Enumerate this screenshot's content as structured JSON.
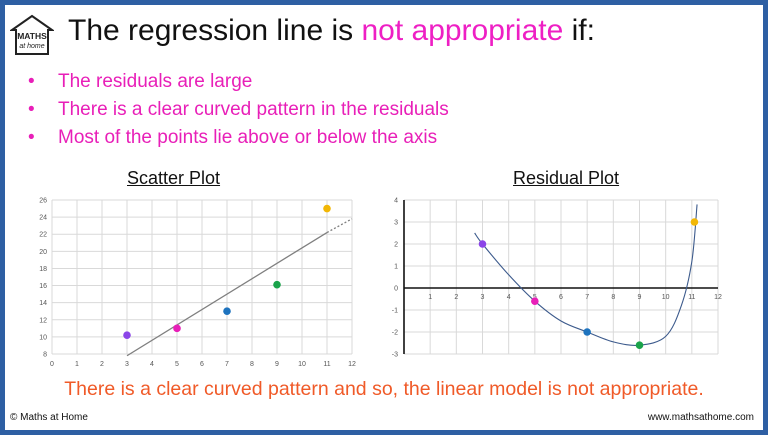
{
  "header": {
    "logo_text": "MATHS at home",
    "title_before": "The regression line is ",
    "title_highlight": "not appropriate",
    "title_after": " if:"
  },
  "bullets": [
    "The residuals are large",
    "There is a clear curved pattern in the residuals",
    "Most of the points lie above or below the axis"
  ],
  "conclusion": "There is a clear curved pattern and so, the linear model is not appropriate.",
  "footer": {
    "left": "© Maths at Home",
    "right": "www.mathsathome.com"
  },
  "chart_data": [
    {
      "type": "scatter",
      "title": "Scatter Plot",
      "xlim": [
        0,
        12
      ],
      "ylim": [
        8,
        26
      ],
      "xticks": [
        0,
        1,
        2,
        3,
        4,
        5,
        6,
        7,
        8,
        9,
        10,
        11,
        12
      ],
      "yticks": [
        8,
        10,
        12,
        14,
        16,
        18,
        20,
        22,
        24,
        26
      ],
      "grid": true,
      "points": [
        {
          "x": 3,
          "y": 10.2,
          "color": "#8b45e8"
        },
        {
          "x": 5,
          "y": 11,
          "color": "#e81fb8"
        },
        {
          "x": 7,
          "y": 13,
          "color": "#1e73be"
        },
        {
          "x": 9,
          "y": 16.1,
          "color": "#1aa34a"
        },
        {
          "x": 11,
          "y": 25,
          "color": "#f2b705"
        }
      ],
      "regression_line": {
        "x_start": 3,
        "y_start": 7.8,
        "x_end": 11,
        "y_end": 22.2,
        "dotted_to_x": 12,
        "dotted_to_y": 23.8
      }
    },
    {
      "type": "scatter",
      "title": "Residual Plot",
      "xlim": [
        0,
        12
      ],
      "ylim": [
        -3,
        4
      ],
      "xticks": [
        1,
        2,
        3,
        4,
        5,
        6,
        7,
        8,
        9,
        10,
        11,
        12
      ],
      "yticks": [
        -3,
        -2,
        -1,
        0,
        1,
        2,
        3,
        4
      ],
      "grid": true,
      "points": [
        {
          "x": 3,
          "y": 2,
          "color": "#8b45e8"
        },
        {
          "x": 5,
          "y": -0.6,
          "color": "#e81fb8"
        },
        {
          "x": 7,
          "y": -2,
          "color": "#1e73be"
        },
        {
          "x": 9,
          "y": -2.6,
          "color": "#1aa34a"
        },
        {
          "x": 11.1,
          "y": 3,
          "color": "#f2b705"
        }
      ],
      "curve": [
        [
          2.7,
          2.5
        ],
        [
          3,
          2
        ],
        [
          4,
          0.6
        ],
        [
          5,
          -0.6
        ],
        [
          6,
          -1.5
        ],
        [
          7,
          -2
        ],
        [
          8,
          -2.45
        ],
        [
          9,
          -2.6
        ],
        [
          10,
          -2.2
        ],
        [
          10.6,
          -0.8
        ],
        [
          11,
          1.2
        ],
        [
          11.2,
          3.8
        ]
      ]
    }
  ]
}
